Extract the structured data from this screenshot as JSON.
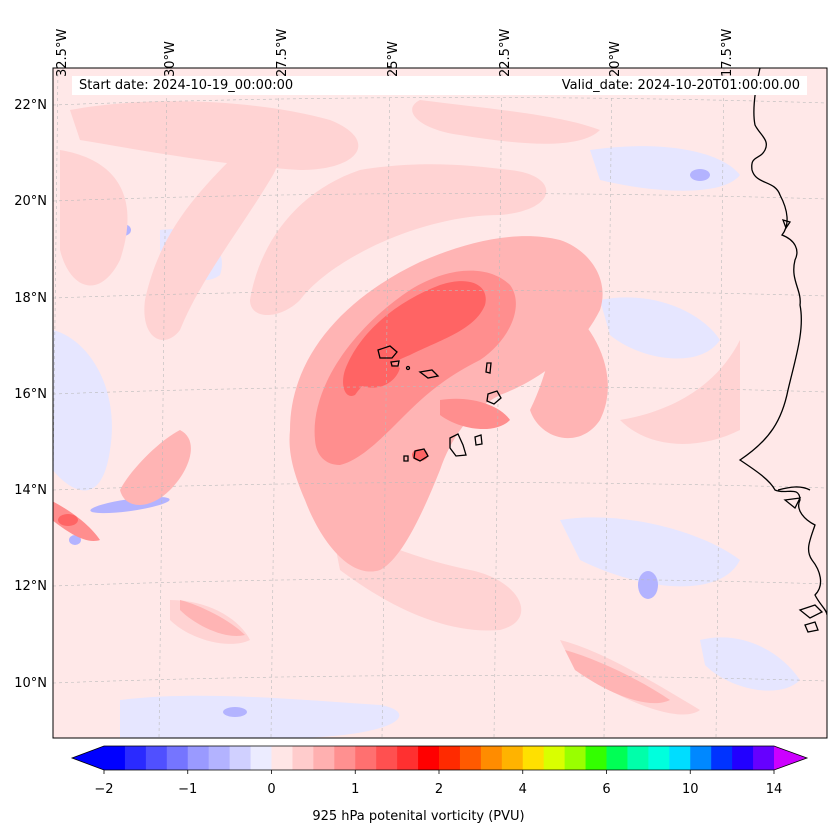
{
  "map": {
    "region": "Eastern tropical North Atlantic, Cape Verde Islands and West African coast",
    "lon_labels": [
      "32.5°W",
      "30°W",
      "27.5°W",
      "25°W",
      "22.5°W",
      "20°W",
      "17.5°W"
    ],
    "lat_labels": [
      "22°N",
      "20°N",
      "18°N",
      "16°N",
      "14°N",
      "12°N",
      "10°N"
    ],
    "field": "925 hPa potential vorticity",
    "colors": {
      "background_low": "#ffe8e8",
      "light_pink": "#ffd3d3",
      "pink": "#ffb4b4",
      "salmon": "#ff8e8e",
      "red_core": "#ff6464",
      "strong_red": "#ff4040",
      "light_blue": "#e6e6ff",
      "blue": "#b3b3ff",
      "dark_blue": "#7a7aff",
      "coastline": "#000000"
    }
  },
  "info": {
    "start_date": "Start date: 2024-10-19_00:00:00",
    "valid_date": "Valid_date: 2024-10-20T01:00:00.00"
  },
  "colorbar": {
    "label": "925 hPa potenital vorticity (PVU)",
    "tick_labels": [
      "−2",
      "−1",
      "0",
      "1",
      "2",
      "4",
      "6",
      "10",
      "14"
    ],
    "tick_values": [
      -2,
      -1,
      0,
      1,
      2,
      4,
      6,
      10,
      14
    ],
    "colors": [
      "#0000ff",
      "#2a2aff",
      "#5050ff",
      "#7575ff",
      "#9a9aff",
      "#b3b3ff",
      "#d0d0ff",
      "#ececff",
      "#ffe6e6",
      "#ffcccc",
      "#ffb0b0",
      "#ff9090",
      "#ff7070",
      "#ff5050",
      "#ff3030",
      "#ff0000",
      "#ff2a00",
      "#ff5a00",
      "#ff8c00",
      "#ffb300",
      "#ffe000",
      "#d9ff00",
      "#99ff00",
      "#33ff00",
      "#00ff55",
      "#00ffaa",
      "#00ffdd",
      "#00ddff",
      "#0088ff",
      "#0033ff",
      "#2200ff",
      "#6600ff"
    ],
    "extend_min_color": "#0000ff",
    "extend_max_color": "#cc00ff"
  }
}
